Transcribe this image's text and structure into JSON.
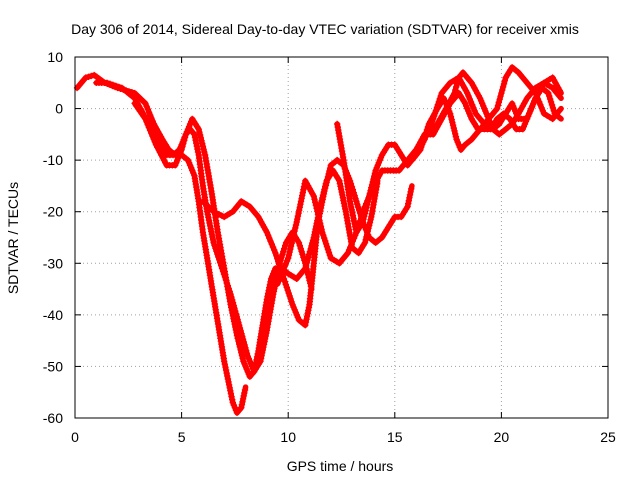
{
  "chart_data": {
    "type": "scatter",
    "title": "Day 306 of 2014, Sidereal Day-to-day VTEC variation (SDTVAR) for receiver xmis",
    "xlabel": "GPS time / hours",
    "ylabel": "SDTVAR / TECUs",
    "xlim": [
      0,
      25
    ],
    "ylim": [
      -60,
      10
    ],
    "xticks": [
      "0",
      "5",
      "10",
      "15",
      "20",
      "25"
    ],
    "yticks": [
      "10",
      "0",
      "-10",
      "-20",
      "-30",
      "-40",
      "-50",
      "-60"
    ],
    "grid": true,
    "marker": "plus",
    "color": "#ff0000",
    "series": [
      {
        "x": [
          0.1,
          0.5,
          0.9,
          1.4,
          2.0,
          2.8,
          3.3,
          3.7,
          4.1,
          4.4,
          4.7,
          5.0,
          5.3,
          5.6,
          5.8,
          6.0,
          6.2,
          6.4,
          6.6,
          6.8,
          7.0,
          7.2,
          7.4,
          7.6,
          7.8,
          8.0
        ],
        "y": [
          4,
          6,
          6.5,
          5,
          4,
          3,
          1,
          -3,
          -6,
          -8,
          -9,
          -9,
          -10,
          -13,
          -18,
          -24,
          -29,
          -34,
          -39,
          -44,
          -49,
          -53,
          -57,
          -59,
          -58,
          -54
        ]
      },
      {
        "x": [
          1.0,
          1.5,
          2.2,
          2.8,
          3.2,
          3.6,
          4.0,
          4.3,
          4.6,
          4.9,
          5.2,
          5.5,
          5.8,
          6.1,
          6.4,
          6.7,
          7.0,
          7.3,
          7.6,
          7.9,
          8.2,
          8.4,
          8.6,
          8.8,
          9.0,
          9.2,
          9.4,
          9.7,
          10.0,
          10.4,
          10.8,
          11.2,
          11.5,
          11.8,
          12.1,
          12.4,
          12.7,
          13.0,
          13.3,
          13.6,
          13.9,
          14.2
        ],
        "y": [
          5,
          5,
          4,
          2,
          -1,
          -4,
          -7,
          -9,
          -9,
          -8,
          -5,
          -2,
          -4,
          -9,
          -16,
          -24,
          -31,
          -38,
          -44,
          -49,
          -52,
          -51,
          -47,
          -42,
          -37,
          -33,
          -31,
          -31,
          -32,
          -33,
          -31,
          -25,
          -19,
          -14,
          -12,
          -14,
          -20,
          -27,
          -28,
          -26,
          -21,
          -14
        ]
      },
      {
        "x": [
          2.8,
          3.3,
          3.8,
          4.3,
          4.7,
          5.0,
          5.2,
          5.4,
          5.6,
          5.8,
          6.0,
          6.2,
          6.5,
          6.9,
          7.3,
          7.7,
          8.1,
          8.4,
          8.7,
          9.0,
          9.3,
          9.6,
          9.9,
          10.2,
          10.5,
          10.8,
          11.1
        ],
        "y": [
          1,
          -2,
          -7,
          -11,
          -11,
          -8,
          -5,
          -4,
          -5,
          -9,
          -15,
          -20,
          -26,
          -31,
          -36,
          -42,
          -48,
          -51,
          -49,
          -43,
          -36,
          -30,
          -26,
          -24,
          -26,
          -30,
          -35
        ]
      },
      {
        "x": [
          6.0,
          6.5,
          7.0,
          7.4,
          7.8,
          8.2,
          8.6,
          9.0,
          9.4,
          9.8,
          10.2,
          10.5,
          10.8,
          11.0,
          11.2,
          11.4,
          11.7,
          12.0,
          12.3,
          12.6,
          12.9,
          13.2,
          13.5,
          13.8,
          14.1,
          14.4,
          14.7,
          15.0,
          15.3,
          15.6,
          15.8
        ],
        "y": [
          -18,
          -20,
          -21,
          -20,
          -18,
          -19,
          -21,
          -24,
          -28,
          -33,
          -38,
          -41,
          -42,
          -38,
          -30,
          -22,
          -16,
          -11,
          -10,
          -11,
          -14,
          -18,
          -22,
          -25,
          -26,
          -25,
          -23,
          -21,
          -21,
          -19,
          -15
        ]
      },
      {
        "x": [
          9.5,
          10.0,
          10.4,
          10.8,
          11.2,
          11.6,
          12.0,
          12.4,
          12.8,
          13.2,
          13.6,
          14.0,
          14.4,
          14.8,
          15.2,
          15.6,
          16.0,
          16.4,
          16.8,
          17.2,
          17.6,
          18.0,
          18.3,
          18.6,
          18.9,
          19.2,
          19.5,
          19.8,
          20.1,
          20.4,
          20.7,
          21.0,
          21.3,
          21.6,
          21.9,
          22.2,
          22.5,
          22.8
        ],
        "y": [
          -34,
          -29,
          -22,
          -14,
          -17,
          -24,
          -29,
          -30,
          -28,
          -24,
          -19,
          -15,
          -12,
          -12,
          -12,
          -10,
          -8,
          -5,
          -5,
          -2,
          1,
          3,
          1,
          -2,
          -4,
          -4,
          -4,
          -2,
          -1,
          -2,
          -4,
          -4,
          -1,
          2,
          4,
          3,
          -1,
          -2
        ]
      },
      {
        "x": [
          12.3,
          12.6,
          12.9,
          13.2,
          13.5,
          13.8,
          14.1,
          14.4,
          14.7,
          15.0,
          15.3,
          15.6,
          16.0,
          16.4,
          16.8,
          17.2,
          17.6,
          18.0,
          18.4,
          18.8,
          19.2,
          19.6,
          19.9,
          20.2,
          20.5,
          20.8,
          21.2,
          21.6,
          22.0,
          22.4,
          22.8
        ],
        "y": [
          -3,
          -10,
          -18,
          -24,
          -22,
          -17,
          -12,
          -9,
          -7,
          -7,
          -9,
          -11,
          -9,
          -6,
          -2,
          3,
          5,
          6,
          3,
          -1,
          -3,
          -4,
          -3,
          -1,
          1,
          -2,
          -2,
          2,
          5,
          6,
          3
        ]
      },
      {
        "x": [
          15.8,
          16.2,
          16.6,
          17.0,
          17.3,
          17.6,
          17.9,
          18.1,
          18.3,
          18.6,
          19.0,
          19.4,
          19.8,
          20.0,
          20.2,
          20.5,
          20.8,
          21.2,
          21.6,
          22.0,
          22.4,
          22.8
        ],
        "y": [
          -10,
          -8,
          -3,
          0,
          2,
          -1,
          -6,
          -8,
          -7,
          -6,
          -4,
          -2,
          0,
          3,
          6,
          8,
          7,
          5,
          3,
          -1,
          -2,
          0
        ]
      },
      {
        "x": [
          16.5,
          17.0,
          17.4,
          17.8,
          18.0,
          18.2,
          18.6,
          19.0,
          19.3,
          19.6,
          19.9,
          20.2,
          20.5,
          20.8,
          21.2,
          21.6,
          22.0,
          22.4,
          22.8
        ],
        "y": [
          -5,
          -3,
          0,
          3,
          6,
          7,
          5,
          2,
          -1,
          -4,
          -5,
          -4,
          -3,
          -1,
          2,
          4,
          5,
          4,
          2
        ]
      }
    ]
  }
}
